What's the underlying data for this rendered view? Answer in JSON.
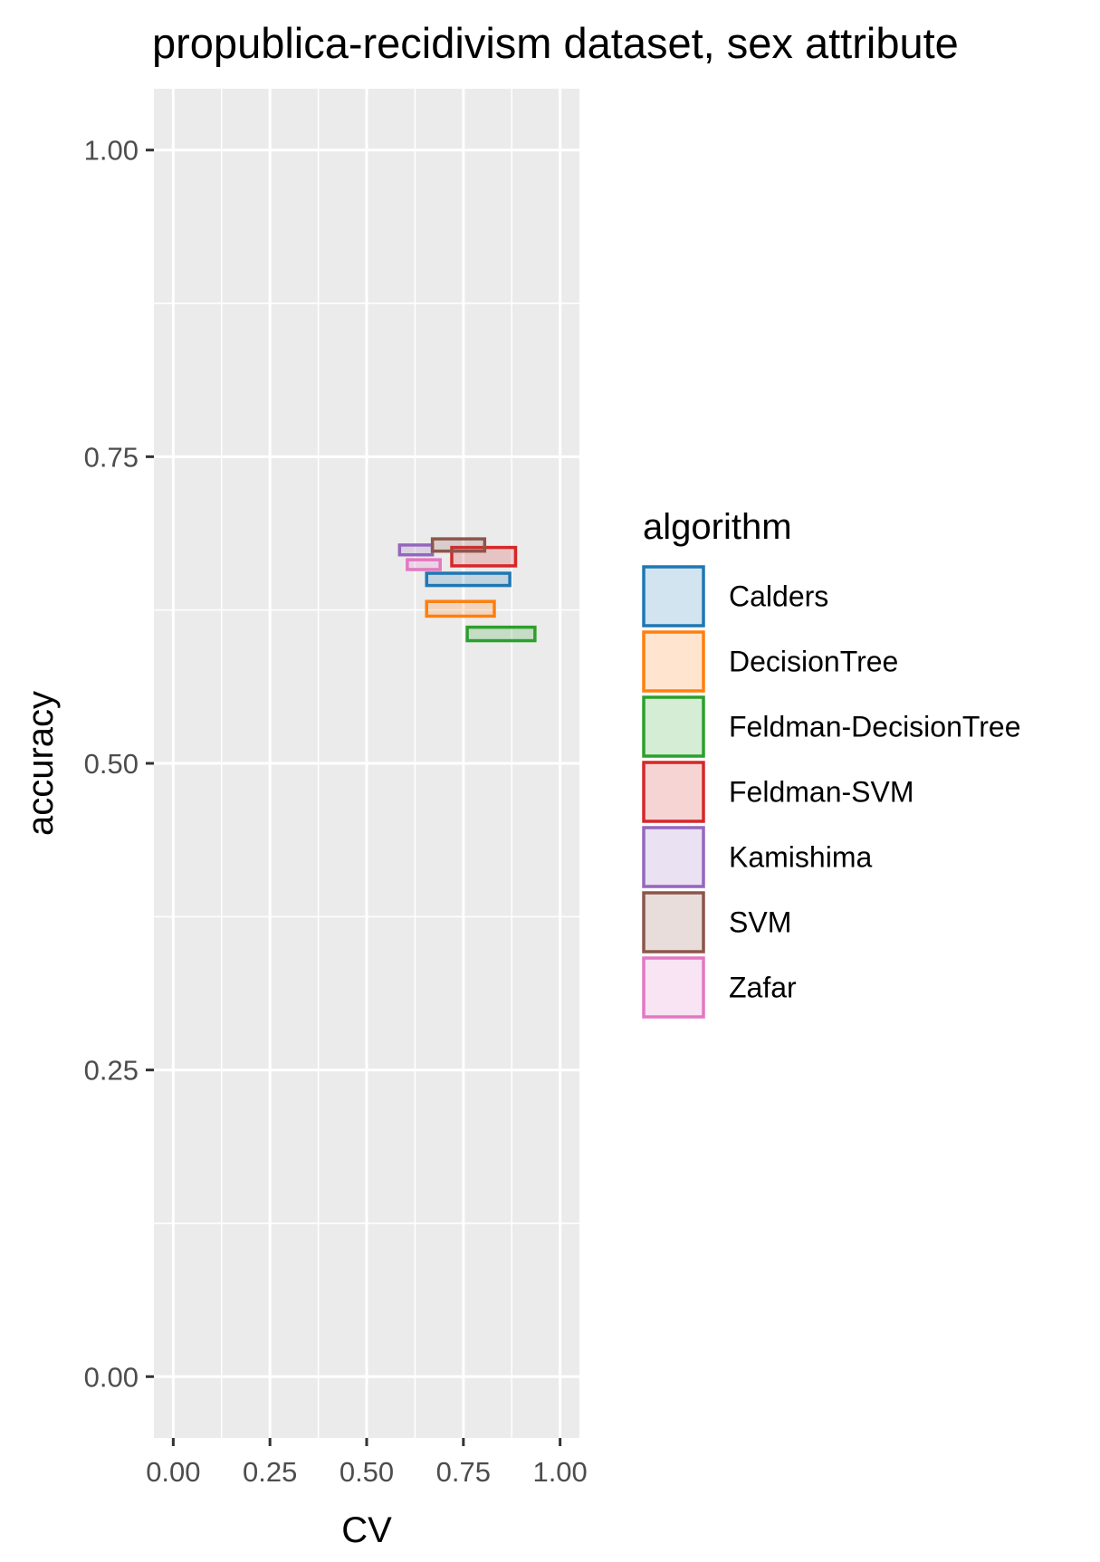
{
  "chart_data": {
    "type": "rect",
    "title": "propublica-recidivism dataset, sex attribute",
    "xlabel": "CV",
    "ylabel": "accuracy",
    "xlim": [
      -0.05,
      1.05
    ],
    "ylim": [
      -0.05,
      1.05
    ],
    "x_ticks": [
      0,
      0.25,
      0.5,
      0.75,
      1
    ],
    "x_tick_labels": [
      "0.00",
      "0.25",
      "0.50",
      "0.75",
      "1.00"
    ],
    "y_ticks": [
      0,
      0.25,
      0.5,
      0.75,
      1
    ],
    "y_tick_labels": [
      "0.00",
      "0.25",
      "0.50",
      "0.75",
      "1.00"
    ],
    "grid": true,
    "legend": {
      "title": "algorithm",
      "position": "right"
    },
    "series": [
      {
        "name": "Calders",
        "color": "#1f77b4",
        "xmin": 0.655,
        "xmax": 0.87,
        "ymin": 0.645,
        "ymax": 0.655
      },
      {
        "name": "DecisionTree",
        "color": "#ff7f0e",
        "xmin": 0.655,
        "xmax": 0.83,
        "ymin": 0.62,
        "ymax": 0.632
      },
      {
        "name": "Feldman-DecisionTree",
        "color": "#2ca02c",
        "xmin": 0.76,
        "xmax": 0.935,
        "ymin": 0.6,
        "ymax": 0.611
      },
      {
        "name": "Feldman-SVM",
        "color": "#d62728",
        "xmin": 0.72,
        "xmax": 0.885,
        "ymin": 0.661,
        "ymax": 0.676
      },
      {
        "name": "Kamishima",
        "color": "#9467bd",
        "xmin": 0.585,
        "xmax": 0.67,
        "ymin": 0.67,
        "ymax": 0.678
      },
      {
        "name": "SVM",
        "color": "#8c564b",
        "xmin": 0.67,
        "xmax": 0.805,
        "ymin": 0.673,
        "ymax": 0.683
      },
      {
        "name": "Zafar",
        "color": "#e377c2",
        "xmin": 0.605,
        "xmax": 0.69,
        "ymin": 0.658,
        "ymax": 0.666
      }
    ]
  }
}
